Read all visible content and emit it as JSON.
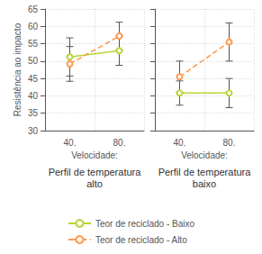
{
  "chart_data": [
    {
      "type": "line",
      "title": "Perfil de temperatura",
      "subtitle": "alto",
      "xlabel": "Velocidade:",
      "ylabel": "Resistência ao impacto",
      "categories": [
        "40.",
        "80."
      ],
      "series": [
        {
          "name": "Teor de reciclado - Baixo",
          "values": [
            51.2,
            53.0
          ],
          "errors": [
            5.5,
            4.2
          ],
          "marker": "circle",
          "line_style": "solid"
        },
        {
          "name": "Teor de reciclado - Alto",
          "values": [
            49.2,
            57.2
          ],
          "errors": [
            5.0,
            4.0
          ],
          "marker": "circle",
          "line_style": "dashed"
        }
      ],
      "ylim": [
        30,
        65
      ],
      "yticks": [
        30,
        35,
        40,
        45,
        50,
        55,
        60,
        65
      ],
      "grid": true,
      "legend": "bottom"
    },
    {
      "type": "line",
      "title": "Perfil de temperatura",
      "subtitle": "baixo",
      "xlabel": "Velocidade:",
      "categories": [
        "40.",
        "80."
      ],
      "series": [
        {
          "name": "Teor de reciclado - Baixo",
          "values": [
            40.8,
            40.8
          ],
          "errors": [
            3.5,
            4.2
          ],
          "marker": "circle",
          "line_style": "solid"
        },
        {
          "name": "Teor de reciclado - Alto",
          "values": [
            45.5,
            55.5
          ],
          "errors": [
            4.5,
            5.5
          ],
          "marker": "circle",
          "line_style": "dashed"
        }
      ],
      "ylim": [
        30,
        65
      ],
      "yticks": [
        30,
        35,
        40,
        45,
        50,
        55,
        60,
        65
      ],
      "grid": true,
      "tick_labels": "x"
    }
  ]
}
